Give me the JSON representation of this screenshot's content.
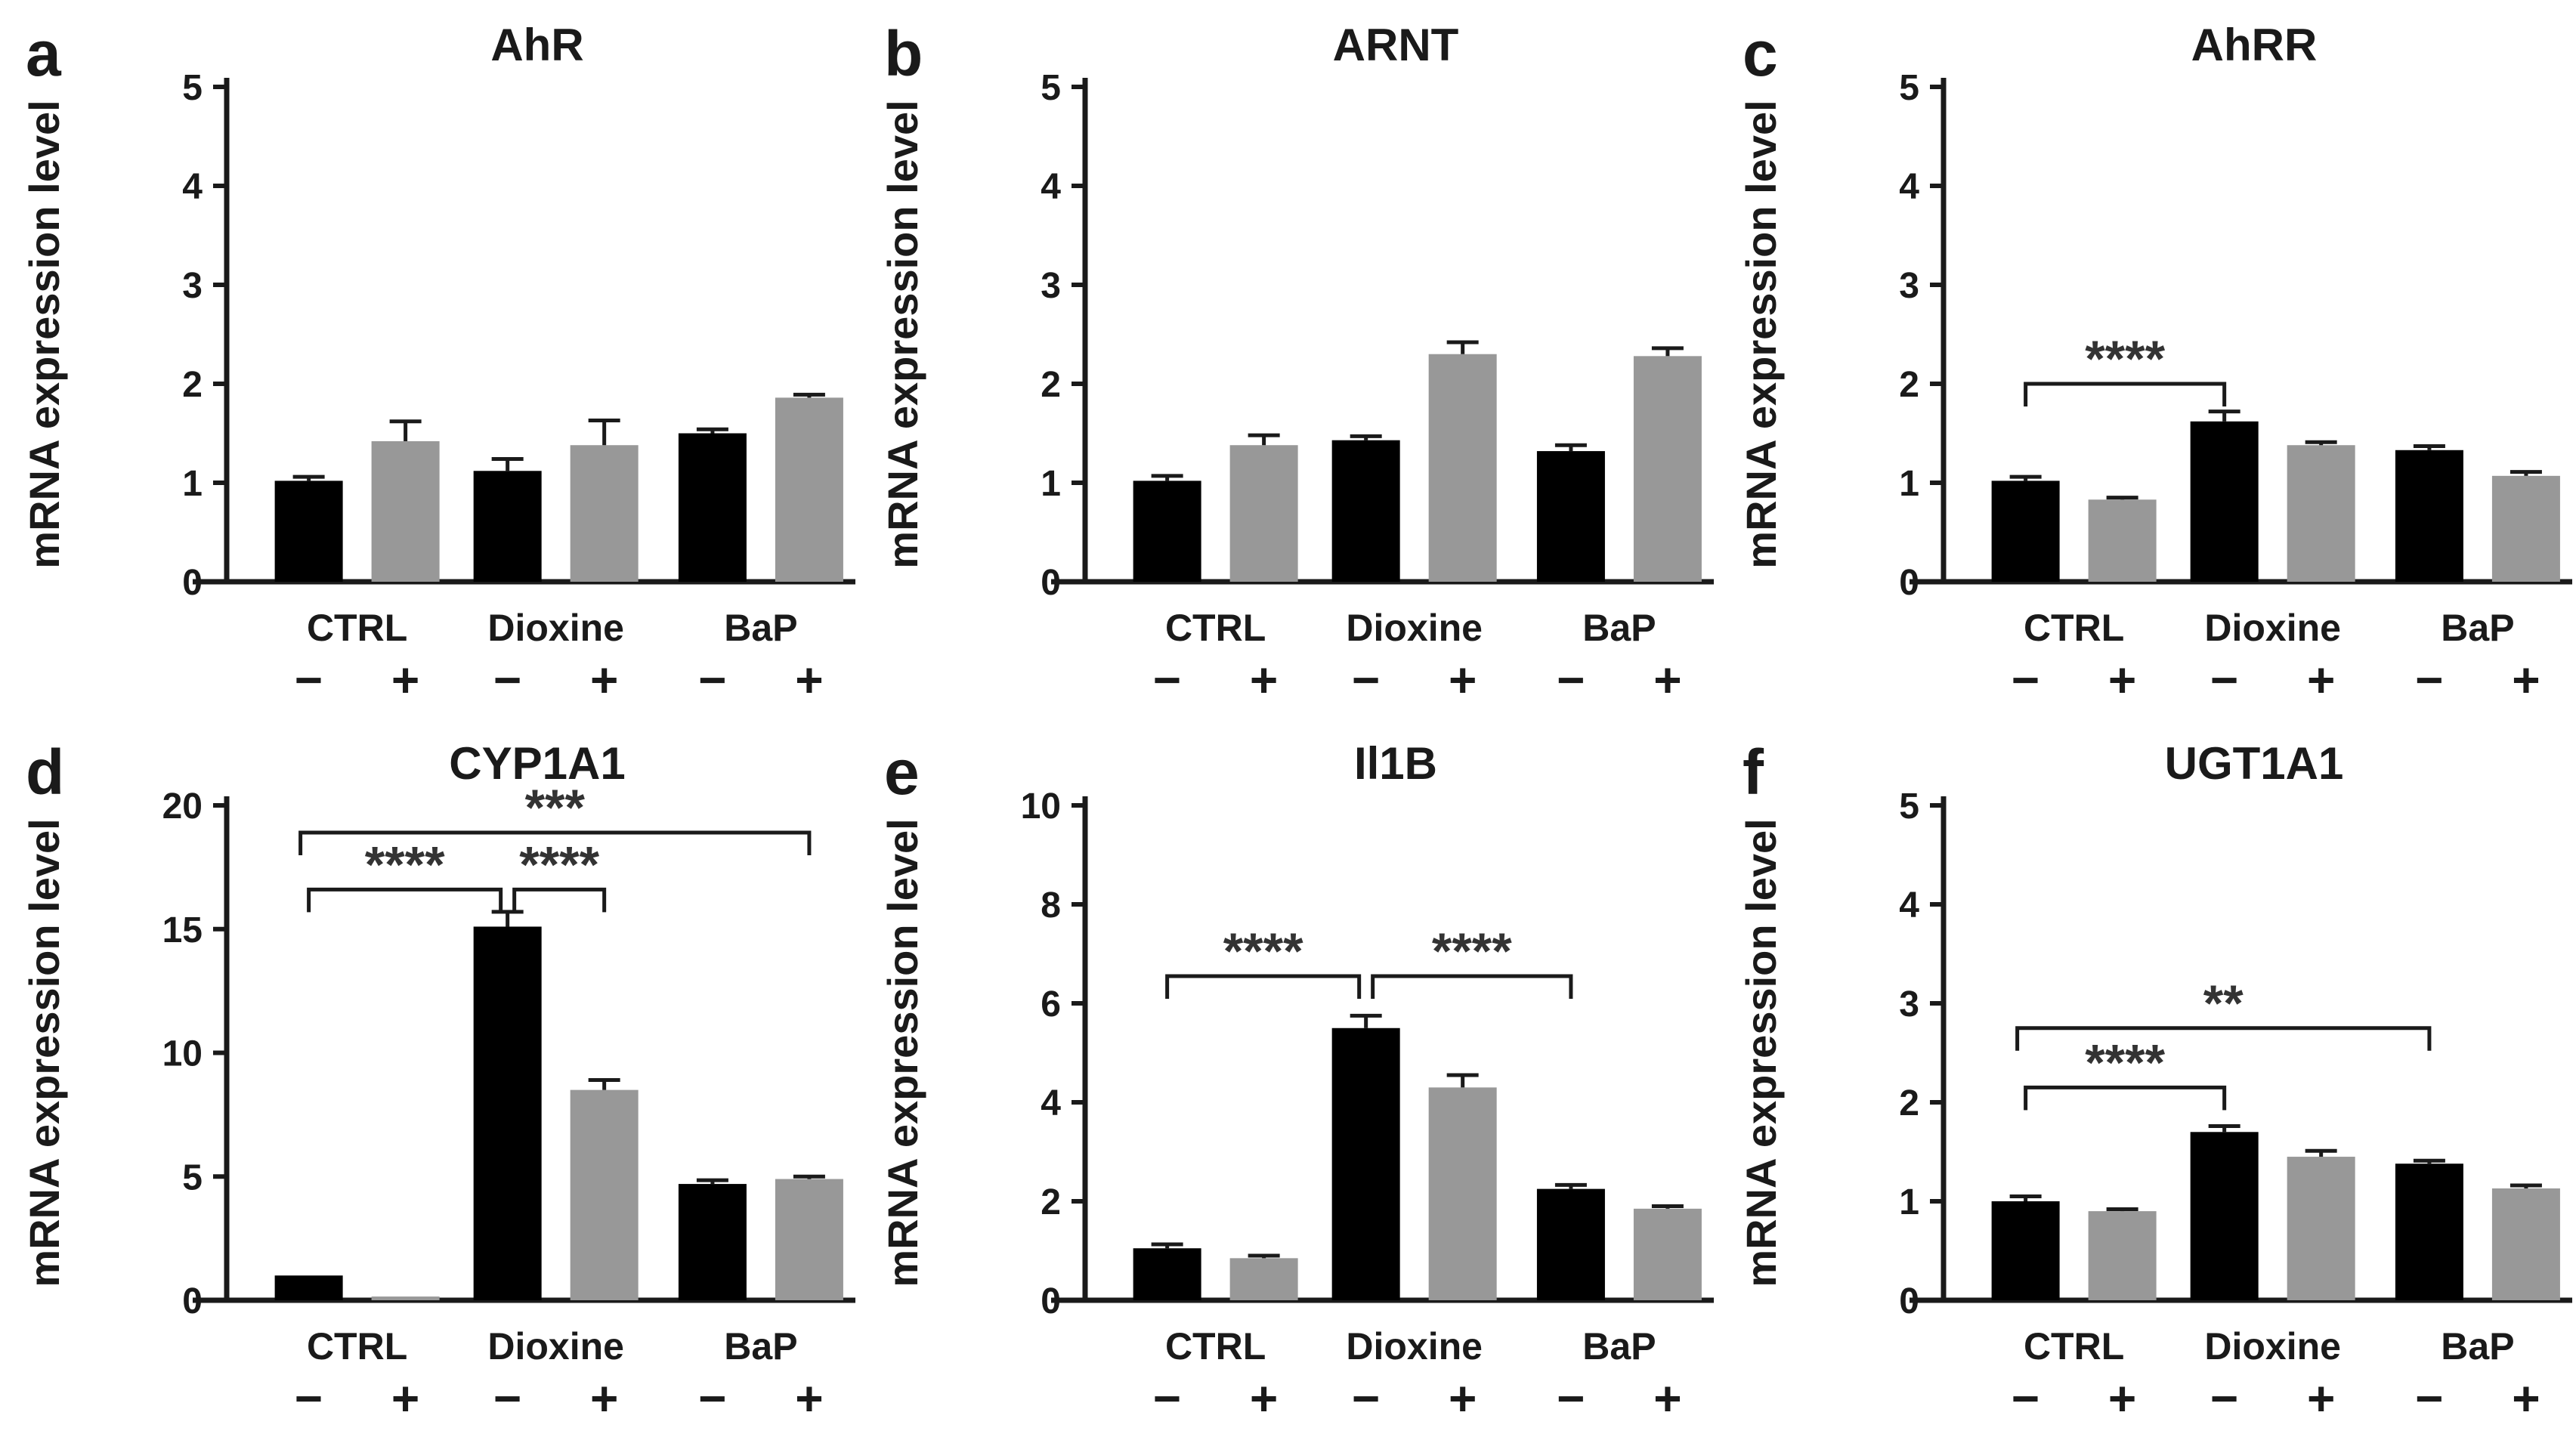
{
  "figure": {
    "background": "#ffffff",
    "text_color": "#1a1a1a",
    "star_color": "#333333",
    "axis_color": "#1a1a1a",
    "bar_colors": {
      "minus": "#000000",
      "plus": "#989898"
    }
  },
  "chart_data": [
    {
      "letter": "a",
      "title": "AhR",
      "type": "bar",
      "ylabel": "mRNA expression level",
      "ylim": [
        0,
        5
      ],
      "yticks": [
        0,
        1,
        2,
        3,
        4,
        5
      ],
      "grid": false,
      "legend": "none",
      "categories": [
        "CTRL",
        "Dioxine",
        "BaP"
      ],
      "sublabels": [
        "−",
        "+"
      ],
      "series": [
        {
          "name": "−",
          "key": "minus",
          "values": [
            1.02,
            1.12,
            1.5
          ],
          "errors": [
            0.04,
            0.12,
            0.04
          ]
        },
        {
          "name": "+",
          "key": "plus",
          "values": [
            1.42,
            1.38,
            1.86
          ],
          "errors": [
            0.2,
            0.25,
            0.03
          ]
        }
      ],
      "significance": []
    },
    {
      "letter": "b",
      "title": "ARNT",
      "type": "bar",
      "ylabel": "mRNA expression level",
      "ylim": [
        0,
        5
      ],
      "yticks": [
        0,
        1,
        2,
        3,
        4,
        5
      ],
      "grid": false,
      "legend": "none",
      "categories": [
        "CTRL",
        "Dioxine",
        "BaP"
      ],
      "sublabels": [
        "−",
        "+"
      ],
      "series": [
        {
          "name": "−",
          "key": "minus",
          "values": [
            1.02,
            1.43,
            1.32
          ],
          "errors": [
            0.05,
            0.04,
            0.06
          ]
        },
        {
          "name": "+",
          "key": "plus",
          "values": [
            1.38,
            2.3,
            2.28
          ],
          "errors": [
            0.1,
            0.12,
            0.08
          ]
        }
      ],
      "significance": []
    },
    {
      "letter": "c",
      "title": "AhRR",
      "type": "bar",
      "ylabel": "mRNA expression level",
      "ylim": [
        0,
        5
      ],
      "yticks": [
        0,
        1,
        2,
        3,
        4,
        5
      ],
      "grid": false,
      "legend": "none",
      "categories": [
        "CTRL",
        "Dioxine",
        "BaP"
      ],
      "sublabels": [
        "−",
        "+"
      ],
      "series": [
        {
          "name": "−",
          "key": "minus",
          "values": [
            1.02,
            1.62,
            1.33
          ],
          "errors": [
            0.04,
            0.1,
            0.04
          ]
        },
        {
          "name": "+",
          "key": "plus",
          "values": [
            0.83,
            1.38,
            1.07
          ],
          "errors": [
            0.02,
            0.03,
            0.04
          ]
        }
      ],
      "significance": [
        {
          "from": [
            0,
            0
          ],
          "to": [
            1,
            0
          ],
          "y": 2.0,
          "label": "****",
          "dx1": 0,
          "dx2": 0
        }
      ]
    },
    {
      "letter": "d",
      "title": "CYP1A1",
      "type": "bar",
      "ylabel": "mRNA expression level",
      "ylim": [
        0,
        20
      ],
      "yticks": [
        0,
        5,
        10,
        15,
        20
      ],
      "grid": false,
      "legend": "none",
      "categories": [
        "CTRL",
        "Dioxine",
        "BaP"
      ],
      "sublabels": [
        "−",
        "+"
      ],
      "series": [
        {
          "name": "−",
          "key": "minus",
          "values": [
            1.0,
            15.1,
            4.7
          ],
          "errors": [
            0.05,
            0.6,
            0.15
          ]
        },
        {
          "name": "+",
          "key": "plus",
          "values": [
            0.15,
            8.5,
            4.9
          ],
          "errors": [
            0.02,
            0.4,
            0.1
          ]
        }
      ],
      "significance": [
        {
          "from": [
            0,
            0
          ],
          "to": [
            1,
            0
          ],
          "y": 16.6,
          "label": "****",
          "dx1": 0,
          "dx2": -9
        },
        {
          "from": [
            1,
            0
          ],
          "to": [
            1,
            1
          ],
          "y": 16.6,
          "label": "****",
          "dx1": 9,
          "dx2": 0
        },
        {
          "from": [
            0,
            0
          ],
          "to": [
            2,
            1
          ],
          "y": 18.9,
          "label": "***",
          "dx1": -11,
          "dx2": 0
        }
      ]
    },
    {
      "letter": "e",
      "title": "Il1B",
      "type": "bar",
      "ylabel": "mRNA expression level",
      "ylim": [
        0,
        10
      ],
      "yticks": [
        0,
        2,
        4,
        6,
        8,
        10
      ],
      "grid": false,
      "legend": "none",
      "categories": [
        "CTRL",
        "Dioxine",
        "BaP"
      ],
      "sublabels": [
        "−",
        "+"
      ],
      "series": [
        {
          "name": "−",
          "key": "minus",
          "values": [
            1.05,
            5.5,
            2.25
          ],
          "errors": [
            0.08,
            0.25,
            0.08
          ]
        },
        {
          "name": "+",
          "key": "plus",
          "values": [
            0.85,
            4.3,
            1.85
          ],
          "errors": [
            0.05,
            0.25,
            0.05
          ]
        }
      ],
      "significance": [
        {
          "from": [
            0,
            0
          ],
          "to": [
            1,
            0
          ],
          "y": 6.55,
          "label": "****",
          "dx1": 0,
          "dx2": -9
        },
        {
          "from": [
            1,
            0
          ],
          "to": [
            2,
            0
          ],
          "y": 6.55,
          "label": "****",
          "dx1": 9,
          "dx2": 0
        }
      ]
    },
    {
      "letter": "f",
      "title": "UGT1A1",
      "type": "bar",
      "ylabel": "mRNA expression level",
      "ylim": [
        0,
        5
      ],
      "yticks": [
        0,
        1,
        2,
        3,
        4,
        5
      ],
      "grid": false,
      "legend": "none",
      "categories": [
        "CTRL",
        "Dioxine",
        "BaP"
      ],
      "sublabels": [
        "−",
        "+"
      ],
      "series": [
        {
          "name": "−",
          "key": "minus",
          "values": [
            1.0,
            1.7,
            1.38
          ],
          "errors": [
            0.05,
            0.06,
            0.03
          ]
        },
        {
          "name": "+",
          "key": "plus",
          "values": [
            0.9,
            1.45,
            1.13
          ],
          "errors": [
            0.02,
            0.06,
            0.03
          ]
        }
      ],
      "significance": [
        {
          "from": [
            0,
            0
          ],
          "to": [
            1,
            0
          ],
          "y": 2.15,
          "label": "****",
          "dx1": 0,
          "dx2": 0
        },
        {
          "from": [
            0,
            0
          ],
          "to": [
            2,
            0
          ],
          "y": 2.75,
          "label": "**",
          "dx1": -11,
          "dx2": 0
        }
      ]
    }
  ]
}
